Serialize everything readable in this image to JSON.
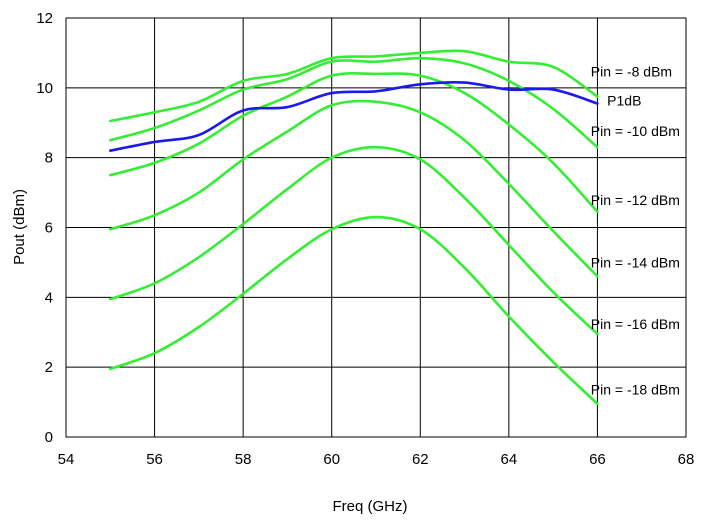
{
  "chart_data": {
    "type": "line",
    "title": "",
    "xlabel": "Freq (GHz)",
    "ylabel": "Pout (dBm)",
    "xlim": [
      54,
      68
    ],
    "ylim": [
      0,
      12
    ],
    "xticks": [
      54,
      56,
      58,
      60,
      62,
      64,
      66,
      68
    ],
    "yticks": [
      0,
      2,
      4,
      6,
      8,
      10,
      12
    ],
    "grid": true,
    "legend": "none",
    "x": [
      55,
      56,
      57,
      58,
      59,
      60,
      61,
      62,
      63,
      64,
      65,
      66
    ],
    "series": [
      {
        "name": "Pin = -8 dBm",
        "color": "#33ee33",
        "values": [
          9.05,
          9.3,
          9.6,
          10.2,
          10.4,
          10.85,
          10.9,
          11.0,
          11.05,
          10.75,
          10.6,
          9.75
        ]
      },
      {
        "name": "",
        "color": "#33ee33",
        "values": [
          8.5,
          8.85,
          9.35,
          9.95,
          10.25,
          10.75,
          10.75,
          10.85,
          10.7,
          10.2,
          9.4,
          8.3
        ]
      },
      {
        "name": "P1dB",
        "color": "#1a1aee",
        "values": [
          8.2,
          8.45,
          8.65,
          9.35,
          9.45,
          9.85,
          9.9,
          10.1,
          10.15,
          9.95,
          9.95,
          9.55
        ]
      },
      {
        "name": "Pin = -10 dBm",
        "color": "#33ee33",
        "values": [
          7.5,
          7.85,
          8.4,
          9.2,
          9.75,
          10.35,
          10.4,
          10.35,
          9.85,
          8.95,
          7.85,
          6.45
        ]
      },
      {
        "name": "Pin = -12 dBm",
        "color": "#33ee33",
        "values": [
          5.95,
          6.35,
          7.0,
          7.95,
          8.75,
          9.5,
          9.6,
          9.3,
          8.5,
          7.25,
          5.9,
          4.6
        ]
      },
      {
        "name": "Pin = -14 dBm",
        "color": "#33ee33",
        "values": [
          3.95,
          4.4,
          5.15,
          6.1,
          7.1,
          8.0,
          8.3,
          7.95,
          6.85,
          5.5,
          4.15,
          2.95
        ]
      },
      {
        "name": "Pin = -16 dBm",
        "color": "#33ee33",
        "values": [
          1.95,
          2.4,
          3.15,
          4.1,
          5.1,
          5.95,
          6.3,
          5.95,
          4.85,
          3.45,
          2.15,
          0.95
        ]
      }
    ],
    "annotations": [
      {
        "text": "Pin = -8 dBm",
        "x": 65.85,
        "y": 10.32
      },
      {
        "text": "P1dB",
        "x": 66.22,
        "y": 9.5
      },
      {
        "text": "Pin = -10 dBm",
        "x": 65.85,
        "y": 8.62
      },
      {
        "text": "Pin = -12 dBm",
        "x": 65.85,
        "y": 6.65
      },
      {
        "text": "Pin = -14 dBm",
        "x": 65.85,
        "y": 4.85
      },
      {
        "text": "Pin = -16 dBm",
        "x": 65.85,
        "y": 3.1
      },
      {
        "text": "Pin = -18 dBm",
        "x": 65.85,
        "y": 1.22
      }
    ]
  }
}
